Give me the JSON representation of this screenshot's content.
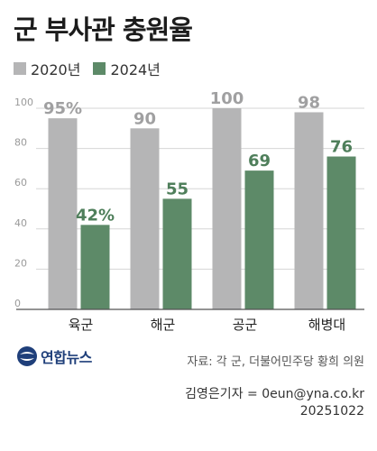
{
  "title": "군 부사관 충원율",
  "legend": [
    {
      "label": "2020년",
      "color": "#b5b5b6"
    },
    {
      "label": "2024년",
      "color": "#5d8a68"
    }
  ],
  "chart_data": {
    "type": "bar",
    "title": "군 부사관 충원율",
    "categories": [
      "육군",
      "해군",
      "공군",
      "해병대"
    ],
    "series": [
      {
        "name": "2020년",
        "values": [
          95,
          90,
          100,
          98
        ],
        "labels": [
          "95%",
          "90",
          "100",
          "98"
        ],
        "color": "#b5b5b6",
        "label_color": "#a0a0a1"
      },
      {
        "name": "2024년",
        "values": [
          42,
          55,
          69,
          76
        ],
        "labels": [
          "42%",
          "55",
          "69",
          "76"
        ],
        "color": "#5d8a68",
        "label_color": "#4f7f5b"
      }
    ],
    "yticks": [
      0,
      20,
      40,
      60,
      80,
      100
    ],
    "ylim": [
      0,
      100
    ],
    "grid": true,
    "legend_position": "top-left"
  },
  "logo": {
    "text": "연합뉴스",
    "icon": "yonhap-logo-icon"
  },
  "source": "자료: 각 군, 더불어민주당 황희 의원",
  "credit": {
    "reporter": "김영은기자 = 0eun@yna.co.kr",
    "date": "20251022"
  }
}
